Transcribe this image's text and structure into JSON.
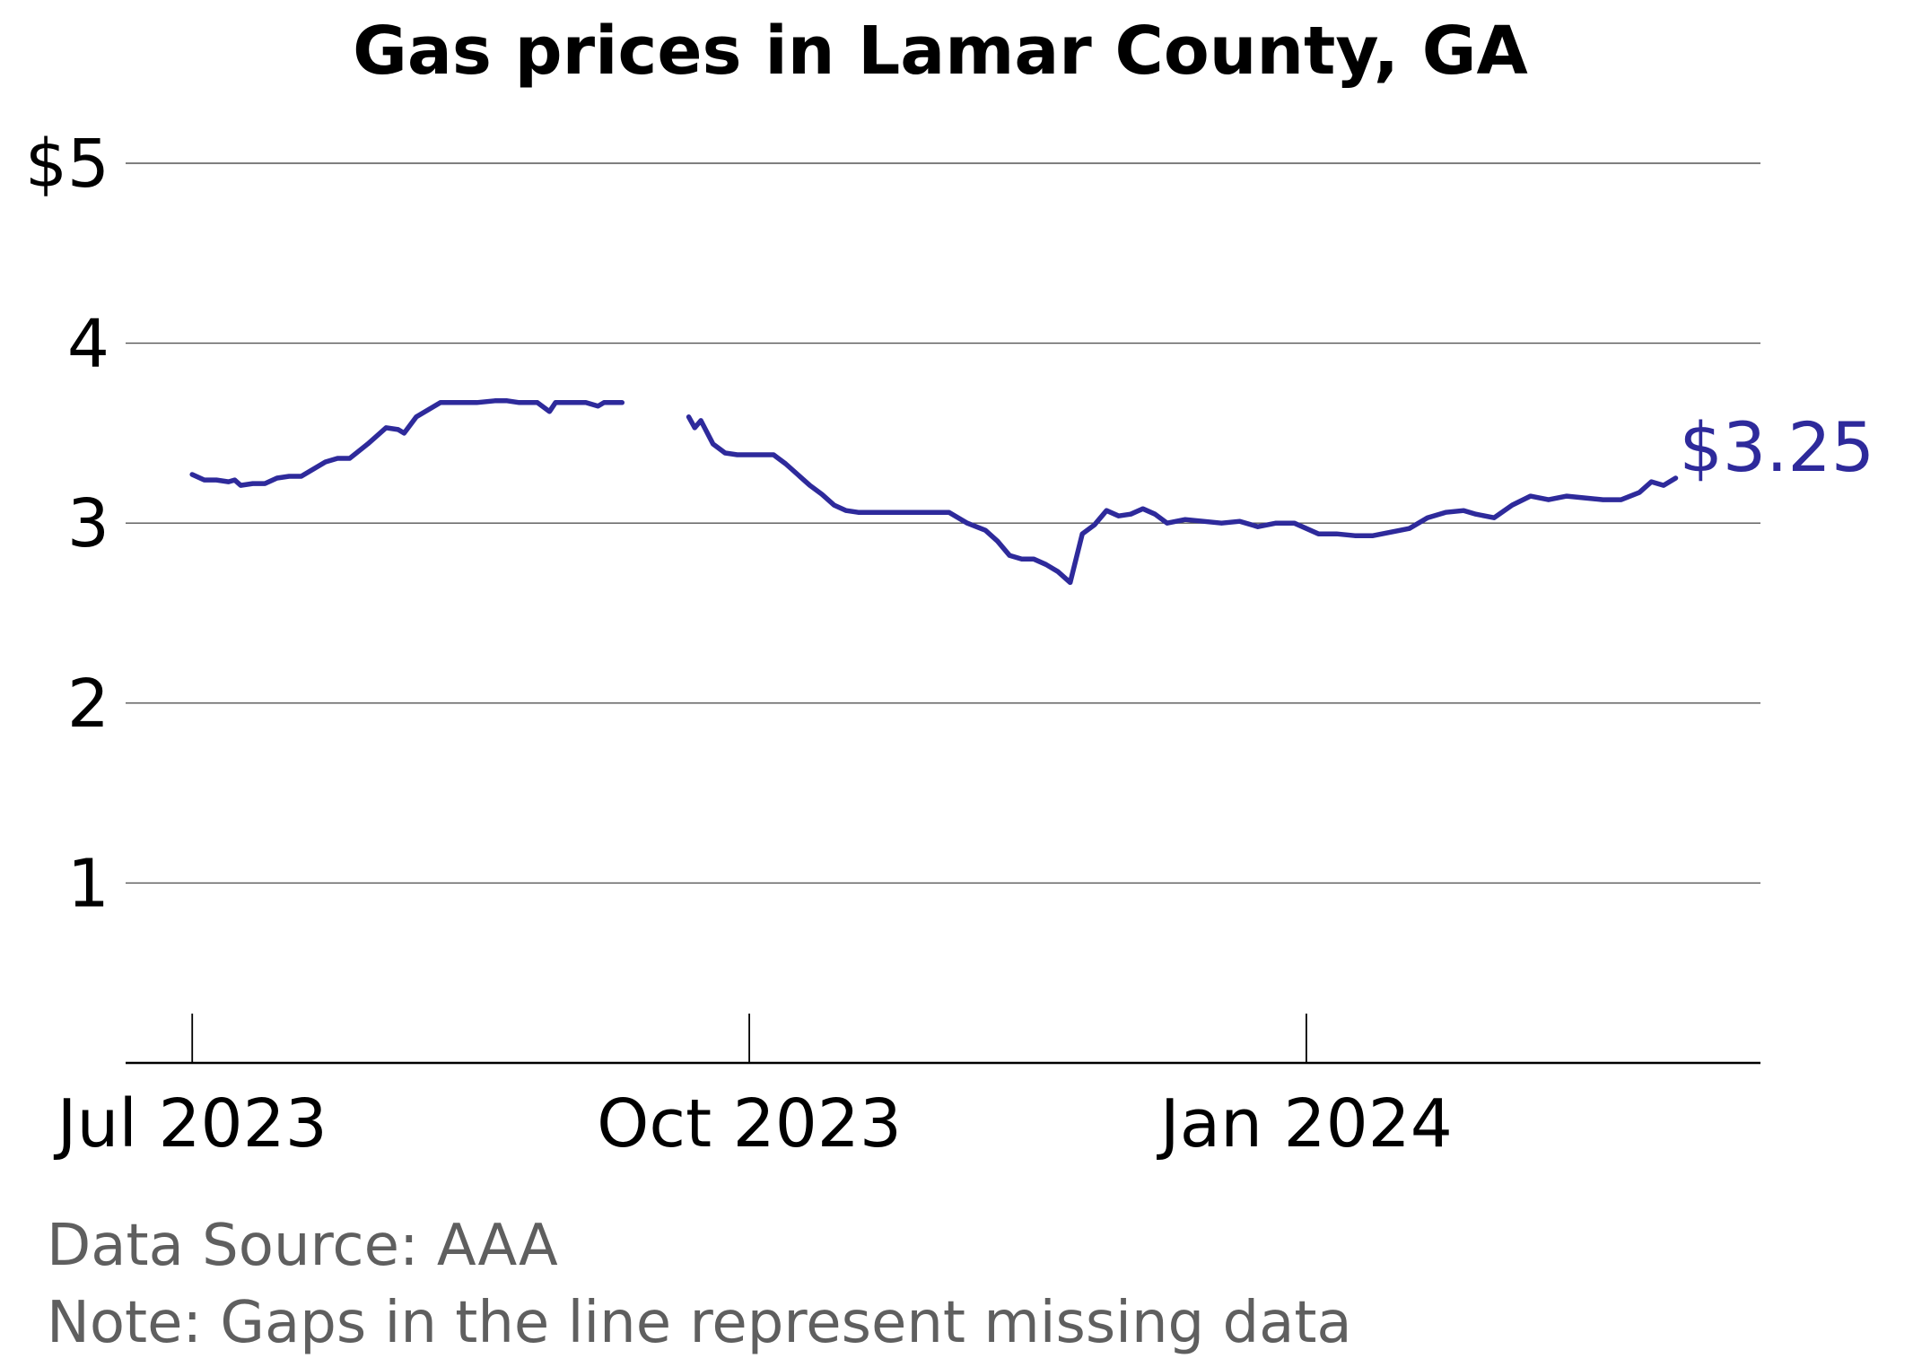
{
  "chart_data": {
    "type": "line",
    "title": "Gas prices in Lamar County, GA",
    "xlabel": "",
    "ylabel": "",
    "ylim": [
      0,
      5
    ],
    "yticks": [
      {
        "value": 1,
        "label": "1"
      },
      {
        "value": 2,
        "label": "2"
      },
      {
        "value": 3,
        "label": "3"
      },
      {
        "value": 4,
        "label": "4"
      },
      {
        "value": 5,
        "label": "$5"
      }
    ],
    "xlim": [
      "2023-06-20",
      "2024-03-16"
    ],
    "xticks": [
      {
        "date": "2023-07-01",
        "label": "Jul 2023"
      },
      {
        "date": "2023-10-01",
        "label": "Oct 2023"
      },
      {
        "date": "2024-01-01",
        "label": "Jan 2024"
      }
    ],
    "grid": true,
    "line_color": "#2e2a9b",
    "end_label": "$3.25",
    "series": [
      {
        "segments": [
          [
            [
              "2023-07-01",
              3.27
            ],
            [
              "2023-07-03",
              3.24
            ],
            [
              "2023-07-05",
              3.24
            ],
            [
              "2023-07-07",
              3.23
            ],
            [
              "2023-07-08",
              3.24
            ],
            [
              "2023-07-09",
              3.21
            ],
            [
              "2023-07-11",
              3.22
            ],
            [
              "2023-07-13",
              3.22
            ],
            [
              "2023-07-15",
              3.25
            ],
            [
              "2023-07-17",
              3.26
            ],
            [
              "2023-07-19",
              3.26
            ],
            [
              "2023-07-21",
              3.3
            ],
            [
              "2023-07-23",
              3.34
            ],
            [
              "2023-07-25",
              3.36
            ],
            [
              "2023-07-27",
              3.36
            ],
            [
              "2023-07-30",
              3.44
            ],
            [
              "2023-08-02",
              3.53
            ],
            [
              "2023-08-04",
              3.52
            ],
            [
              "2023-08-05",
              3.5
            ],
            [
              "2023-08-07",
              3.59
            ],
            [
              "2023-08-09",
              3.63
            ],
            [
              "2023-08-11",
              3.67
            ],
            [
              "2023-08-14",
              3.67
            ],
            [
              "2023-08-17",
              3.67
            ],
            [
              "2023-08-20",
              3.68
            ],
            [
              "2023-08-22",
              3.68
            ],
            [
              "2023-08-24",
              3.67
            ],
            [
              "2023-08-27",
              3.67
            ],
            [
              "2023-08-29",
              3.62
            ],
            [
              "2023-08-30",
              3.67
            ],
            [
              "2023-09-01",
              3.67
            ],
            [
              "2023-09-04",
              3.67
            ],
            [
              "2023-09-06",
              3.65
            ],
            [
              "2023-09-07",
              3.67
            ],
            [
              "2023-09-10",
              3.67
            ]
          ],
          [
            [
              "2023-09-21",
              3.59
            ],
            [
              "2023-09-22",
              3.53
            ],
            [
              "2023-09-23",
              3.57
            ],
            [
              "2023-09-25",
              3.44
            ],
            [
              "2023-09-27",
              3.39
            ],
            [
              "2023-09-29",
              3.38
            ],
            [
              "2023-10-02",
              3.38
            ],
            [
              "2023-10-05",
              3.38
            ],
            [
              "2023-10-07",
              3.33
            ],
            [
              "2023-10-09",
              3.27
            ],
            [
              "2023-10-11",
              3.21
            ],
            [
              "2023-10-13",
              3.16
            ],
            [
              "2023-10-15",
              3.1
            ],
            [
              "2023-10-17",
              3.07
            ],
            [
              "2023-10-19",
              3.06
            ],
            [
              "2023-10-22",
              3.06
            ],
            [
              "2023-10-25",
              3.06
            ],
            [
              "2023-10-28",
              3.06
            ],
            [
              "2023-10-31",
              3.06
            ],
            [
              "2023-11-03",
              3.06
            ],
            [
              "2023-11-06",
              3.0
            ],
            [
              "2023-11-09",
              2.96
            ],
            [
              "2023-11-11",
              2.9
            ],
            [
              "2023-11-13",
              2.82
            ],
            [
              "2023-11-15",
              2.8
            ],
            [
              "2023-11-17",
              2.8
            ],
            [
              "2023-11-19",
              2.77
            ],
            [
              "2023-11-21",
              2.73
            ],
            [
              "2023-11-23",
              2.67
            ],
            [
              "2023-11-25",
              2.94
            ],
            [
              "2023-11-27",
              2.99
            ],
            [
              "2023-11-29",
              3.07
            ],
            [
              "2023-12-01",
              3.04
            ],
            [
              "2023-12-03",
              3.05
            ],
            [
              "2023-12-05",
              3.08
            ],
            [
              "2023-12-07",
              3.05
            ],
            [
              "2023-12-09",
              3.0
            ],
            [
              "2023-12-12",
              3.02
            ],
            [
              "2023-12-15",
              3.01
            ],
            [
              "2023-12-18",
              3.0
            ],
            [
              "2023-12-21",
              3.01
            ],
            [
              "2023-12-24",
              2.98
            ],
            [
              "2023-12-27",
              3.0
            ],
            [
              "2023-12-30",
              3.0
            ],
            [
              "2024-01-03",
              2.94
            ],
            [
              "2024-01-06",
              2.94
            ],
            [
              "2024-01-09",
              2.93
            ],
            [
              "2024-01-12",
              2.93
            ],
            [
              "2024-01-15",
              2.95
            ],
            [
              "2024-01-18",
              2.97
            ],
            [
              "2024-01-21",
              3.03
            ],
            [
              "2024-01-24",
              3.06
            ],
            [
              "2024-01-27",
              3.07
            ],
            [
              "2024-01-29",
              3.05
            ],
            [
              "2024-02-01",
              3.03
            ],
            [
              "2024-02-04",
              3.1
            ],
            [
              "2024-02-07",
              3.15
            ],
            [
              "2024-02-10",
              3.13
            ],
            [
              "2024-02-13",
              3.15
            ],
            [
              "2024-02-16",
              3.14
            ],
            [
              "2024-02-19",
              3.13
            ],
            [
              "2024-02-22",
              3.13
            ],
            [
              "2024-02-25",
              3.17
            ],
            [
              "2024-02-27",
              3.23
            ],
            [
              "2024-02-29",
              3.21
            ],
            [
              "2024-03-02",
              3.25
            ]
          ]
        ]
      }
    ]
  },
  "footnotes": {
    "source": "Data Source: AAA",
    "note": "Note: Gaps in the line represent missing data"
  }
}
